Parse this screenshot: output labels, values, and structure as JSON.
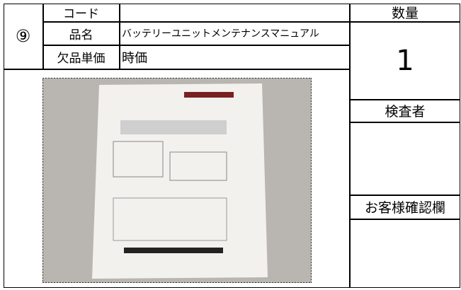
{
  "form": {
    "number": "⑨",
    "rows": [
      {
        "label": "コード",
        "value": ""
      },
      {
        "label": "品名",
        "value": "バッテリーユニットメンテナンスマニュアル"
      },
      {
        "label": "欠品単価",
        "value": "時価"
      }
    ],
    "quantity_label": "数量",
    "quantity": "1",
    "inspector_label": "検査者",
    "customer_check_label": "お客様確認欄"
  }
}
